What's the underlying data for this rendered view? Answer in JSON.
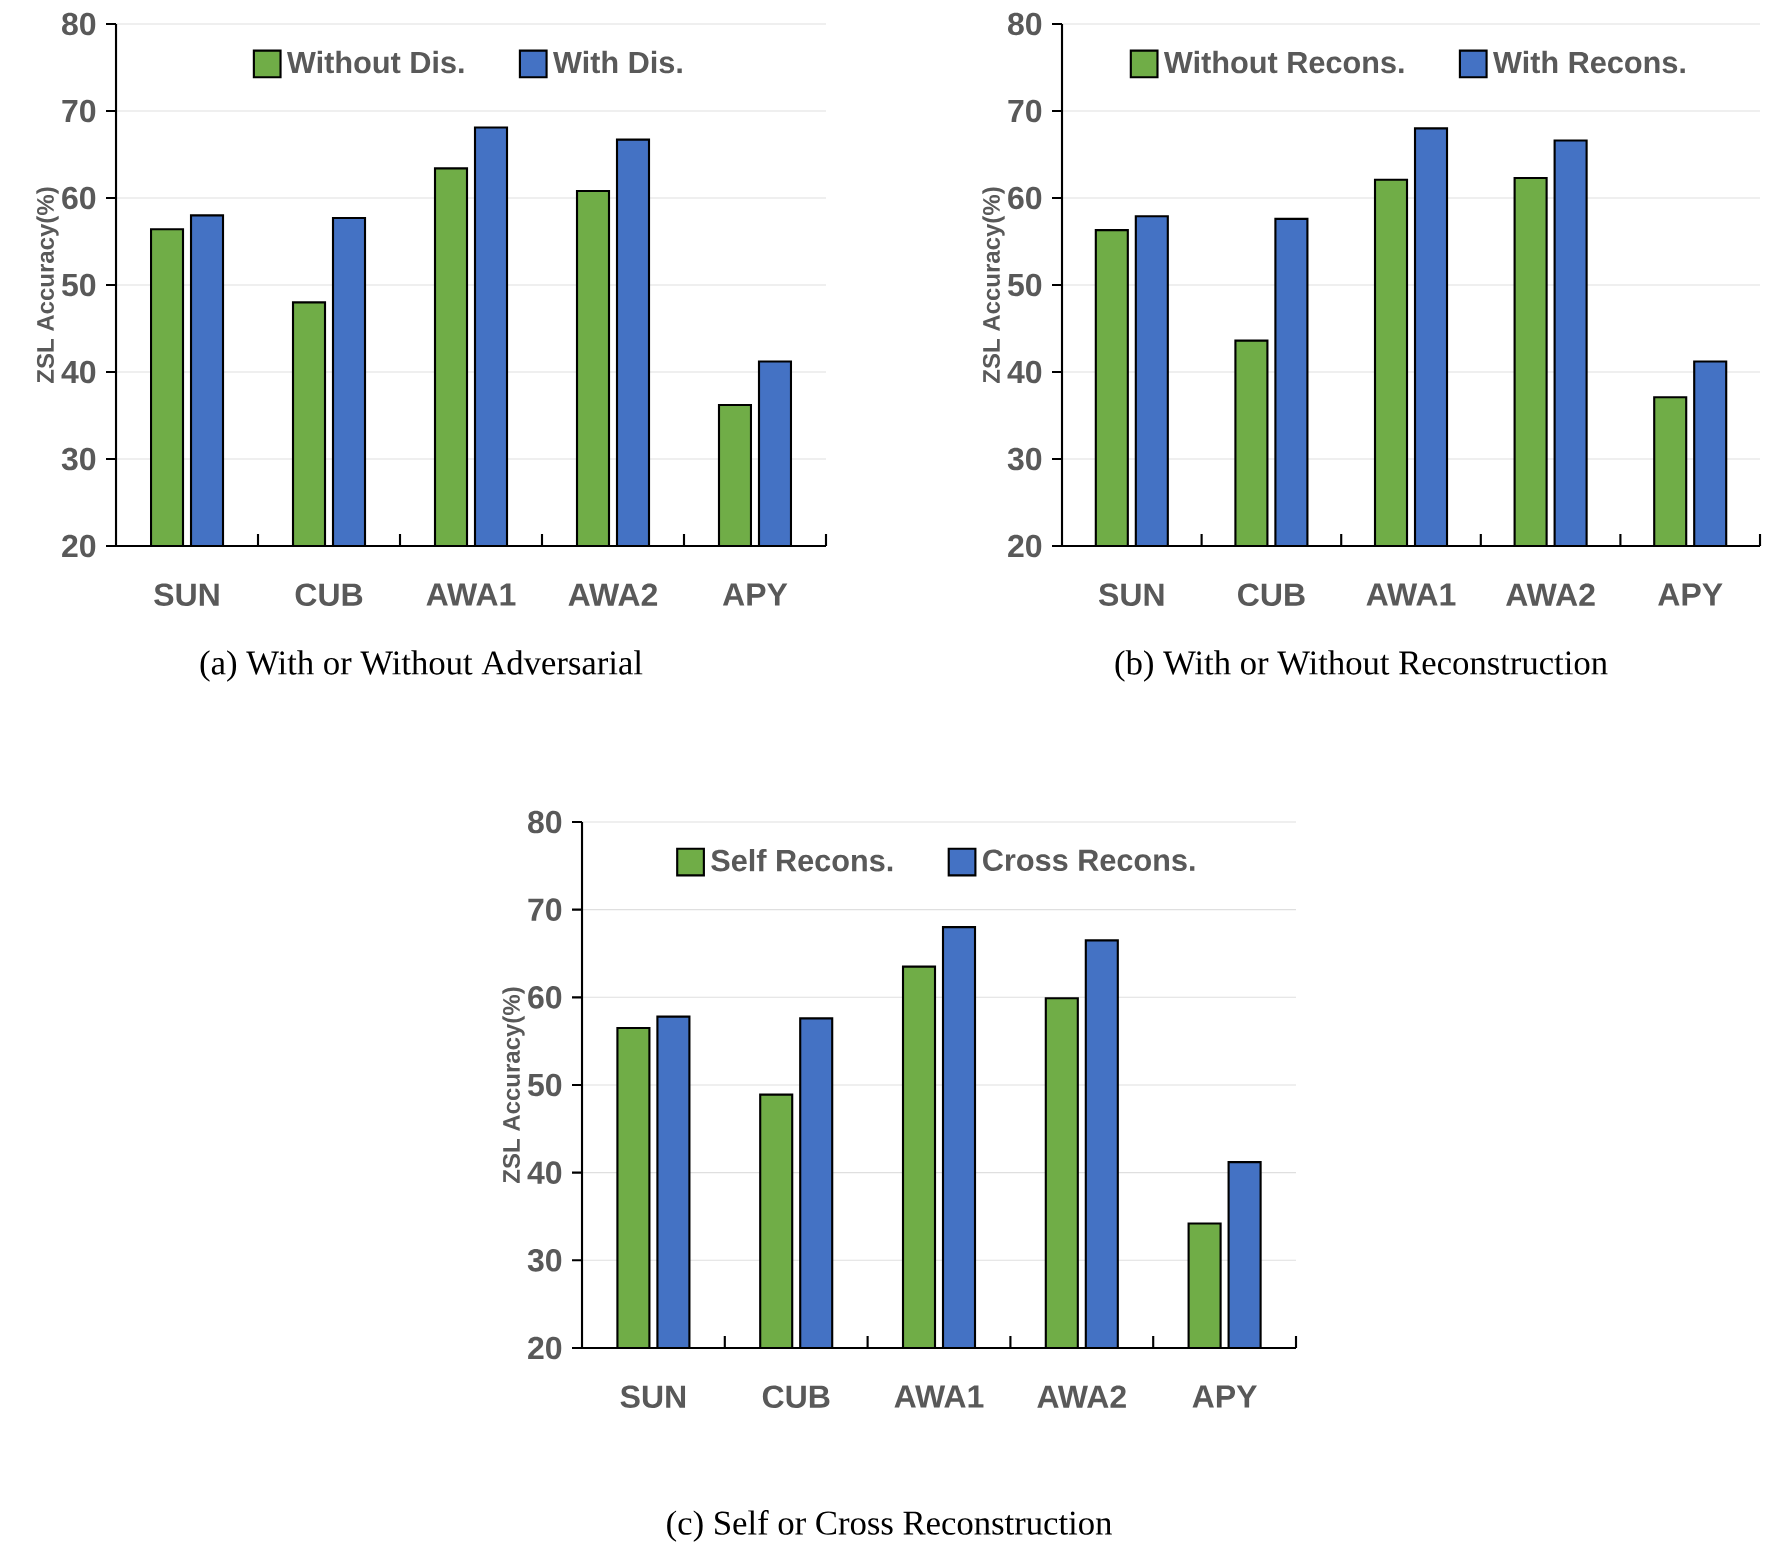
{
  "chart_data": [
    {
      "type": "bar",
      "categories": [
        "SUN",
        "CUB",
        "AWA1",
        "AWA2",
        "APY"
      ],
      "ylabel": "ZSL Accuracy(%)",
      "ylim": [
        20,
        80
      ],
      "yticks": [
        20,
        30,
        40,
        50,
        60,
        70,
        80
      ],
      "grid": "y",
      "legend": "top",
      "series": [
        {
          "name": "Without Dis.",
          "color": "#70ad47",
          "values": [
            56.4,
            48.0,
            63.4,
            60.8,
            36.2
          ]
        },
        {
          "name": "With Dis.",
          "color": "#4472c4",
          "values": [
            58.0,
            57.7,
            68.1,
            66.7,
            41.2
          ]
        }
      ],
      "annotations": [
        "(a) With or Without Adversarial"
      ]
    },
    {
      "type": "bar",
      "categories": [
        "SUN",
        "CUB",
        "AWA1",
        "AWA2",
        "APY"
      ],
      "ylabel": "ZSL Accuracy(%)",
      "ylim": [
        20,
        80
      ],
      "yticks": [
        20,
        30,
        40,
        50,
        60,
        70,
        80
      ],
      "grid": "y",
      "legend": "top",
      "series": [
        {
          "name": "Without Recons.",
          "color": "#70ad47",
          "values": [
            56.3,
            43.6,
            62.1,
            62.3,
            37.1
          ]
        },
        {
          "name": "With Recons.",
          "color": "#4472c4",
          "values": [
            57.9,
            57.6,
            68.0,
            66.6,
            41.2
          ]
        }
      ],
      "annotations": [
        "(b) With or Without Reconstruction"
      ]
    },
    {
      "type": "bar",
      "categories": [
        "SUN",
        "CUB",
        "AWA1",
        "AWA2",
        "APY"
      ],
      "ylabel": "ZSL Accuracy(%)",
      "ylim": [
        20,
        80
      ],
      "yticks": [
        20,
        30,
        40,
        50,
        60,
        70,
        80
      ],
      "grid": "y",
      "legend": "top",
      "series": [
        {
          "name": "Self Recons.",
          "color": "#70ad47",
          "values": [
            56.5,
            48.9,
            63.5,
            59.9,
            34.2
          ]
        },
        {
          "name": "Cross Recons.",
          "color": "#4472c4",
          "values": [
            57.8,
            57.6,
            68.0,
            66.5,
            41.2
          ]
        }
      ],
      "annotations": [
        "(c) Self or Cross Reconstruction"
      ]
    }
  ]
}
